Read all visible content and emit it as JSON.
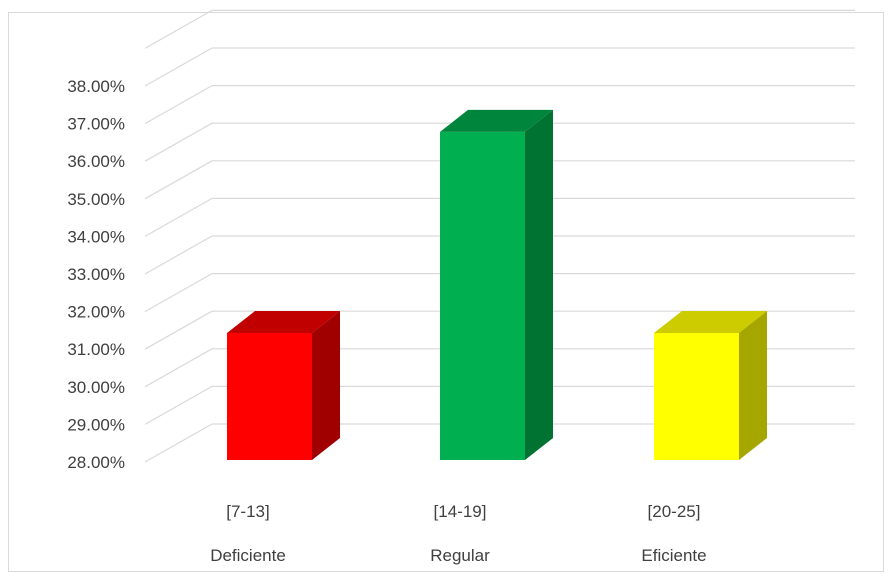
{
  "chart_data": {
    "type": "bar",
    "categories": [
      "[7-13]",
      "[14-19]",
      "[20-25]"
    ],
    "subcategories": [
      "Deficiente",
      "Regular",
      "Eficiente"
    ],
    "values": [
      31.6,
      37.3,
      31.6
    ],
    "ylim": [
      28,
      38
    ],
    "yticks": [
      "28.00%",
      "29.00%",
      "30.00%",
      "31.00%",
      "32.00%",
      "33.00%",
      "34.00%",
      "35.00%",
      "36.00%",
      "37.00%",
      "38.00%"
    ],
    "grid": true,
    "legend": "none",
    "style": "3d-column",
    "colors": [
      {
        "front": "#ff0000",
        "top": "#c00000",
        "side": "#a00000"
      },
      {
        "front": "#00b050",
        "top": "#00863c",
        "side": "#007232"
      },
      {
        "front": "#ffff00",
        "top": "#cccc00",
        "side": "#a6a600"
      }
    ],
    "title": "",
    "xlabel": "",
    "ylabel": ""
  }
}
